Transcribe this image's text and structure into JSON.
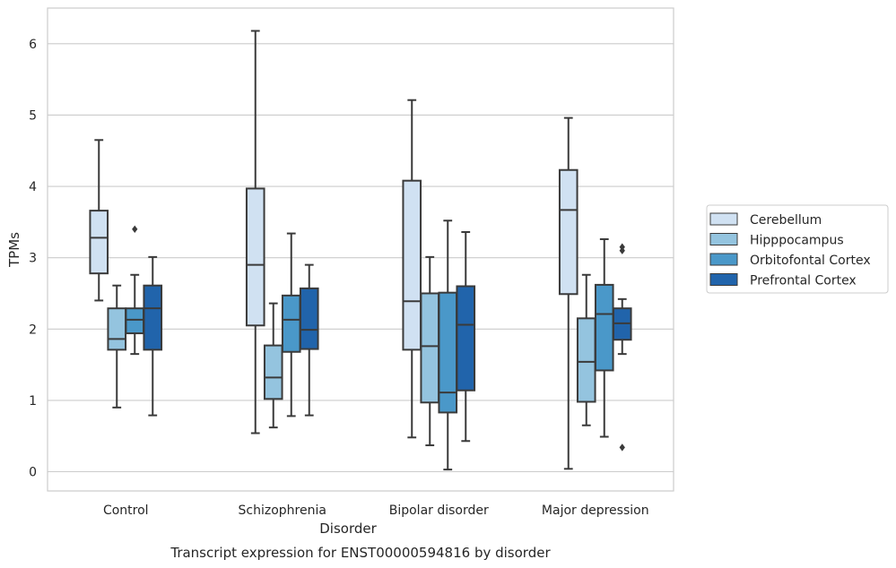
{
  "chart_data": {
    "type": "box",
    "xlabel": "Disorder",
    "ylabel": "TPMs",
    "caption": "Transcript expression for ENST00000594816 by disorder",
    "ylim": [
      -0.27,
      6.5
    ],
    "yticks": [
      0,
      1,
      2,
      3,
      4,
      5,
      6
    ],
    "ytick_labels": [
      "0",
      "1",
      "2",
      "3",
      "4",
      "5",
      "6"
    ],
    "grid": "horizontal",
    "legend_position": "right",
    "categories": [
      "Control",
      "Schizophrenia",
      "Bipolar disorder",
      "Major depression"
    ],
    "series": [
      {
        "name": "Cerebellum",
        "color": "#d0e1f2",
        "boxes": [
          {
            "whisker_low": 2.4,
            "q1": 2.78,
            "median": 3.28,
            "q3": 3.66,
            "whisker_high": 4.65,
            "outliers": []
          },
          {
            "whisker_low": 0.54,
            "q1": 2.05,
            "median": 2.9,
            "q3": 3.97,
            "whisker_high": 6.18,
            "outliers": []
          },
          {
            "whisker_low": 0.48,
            "q1": 1.71,
            "median": 2.39,
            "q3": 4.08,
            "whisker_high": 5.21,
            "outliers": []
          },
          {
            "whisker_low": 0.04,
            "q1": 2.49,
            "median": 3.67,
            "q3": 4.23,
            "whisker_high": 4.96,
            "outliers": []
          }
        ]
      },
      {
        "name": "Hipppocampus",
        "color": "#94c4df",
        "boxes": [
          {
            "whisker_low": 0.9,
            "q1": 1.71,
            "median": 1.86,
            "q3": 2.29,
            "whisker_high": 2.61,
            "outliers": []
          },
          {
            "whisker_low": 0.62,
            "q1": 1.02,
            "median": 1.32,
            "q3": 1.77,
            "whisker_high": 2.36,
            "outliers": []
          },
          {
            "whisker_low": 0.37,
            "q1": 0.97,
            "median": 1.76,
            "q3": 2.5,
            "whisker_high": 3.01,
            "outliers": []
          },
          {
            "whisker_low": 0.65,
            "q1": 0.98,
            "median": 1.54,
            "q3": 2.15,
            "whisker_high": 2.76,
            "outliers": []
          }
        ]
      },
      {
        "name": "Orbitofontal Cortex",
        "color": "#4a98c9",
        "boxes": [
          {
            "whisker_low": 1.65,
            "q1": 1.94,
            "median": 2.13,
            "q3": 2.29,
            "whisker_high": 2.76,
            "outliers": [
              3.4
            ]
          },
          {
            "whisker_low": 0.78,
            "q1": 1.68,
            "median": 2.13,
            "q3": 2.47,
            "whisker_high": 3.34,
            "outliers": []
          },
          {
            "whisker_low": 0.03,
            "q1": 0.83,
            "median": 1.11,
            "q3": 2.51,
            "whisker_high": 3.52,
            "outliers": []
          },
          {
            "whisker_low": 0.49,
            "q1": 1.42,
            "median": 2.21,
            "q3": 2.62,
            "whisker_high": 3.26,
            "outliers": []
          }
        ]
      },
      {
        "name": "Prefrontal Cortex",
        "color": "#2164ab",
        "boxes": [
          {
            "whisker_low": 0.79,
            "q1": 1.71,
            "median": 2.29,
            "q3": 2.61,
            "whisker_high": 3.01,
            "outliers": []
          },
          {
            "whisker_low": 0.79,
            "q1": 1.72,
            "median": 1.99,
            "q3": 2.57,
            "whisker_high": 2.9,
            "outliers": []
          },
          {
            "whisker_low": 0.43,
            "q1": 1.14,
            "median": 2.06,
            "q3": 2.6,
            "whisker_high": 3.36,
            "outliers": []
          },
          {
            "whisker_low": 1.65,
            "q1": 1.85,
            "median": 2.08,
            "q3": 2.29,
            "whisker_high": 2.42,
            "outliers": [
              3.15,
              3.1,
              0.34
            ]
          }
        ]
      }
    ]
  }
}
